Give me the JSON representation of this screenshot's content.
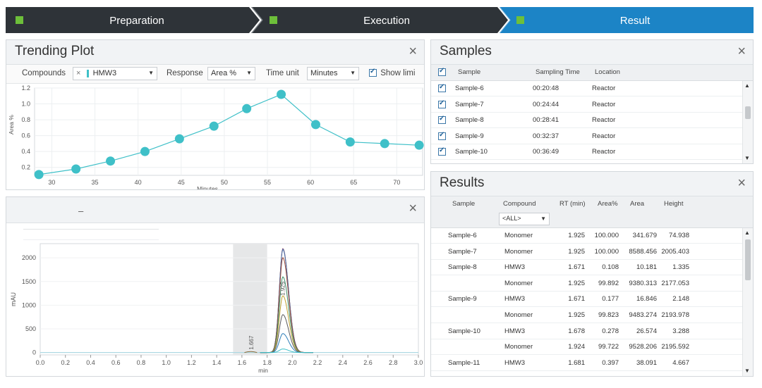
{
  "steps": [
    {
      "label": "Preparation",
      "active": false
    },
    {
      "label": "Execution",
      "active": false
    },
    {
      "label": "Result",
      "active": true
    }
  ],
  "colors": {
    "step_dark": "#2e3338",
    "step_active": "#1c84c6",
    "step_square": "#6dbf3a",
    "trend": "#3fc0c8"
  },
  "trending": {
    "title": "Trending Plot",
    "close": "×",
    "compounds_label": "Compounds",
    "compound_clear": "×",
    "compound_value": "HMW3",
    "response_label": "Response",
    "response_value": "Area %",
    "timeunit_label": "Time unit",
    "timeunit_value": "Minutes",
    "showlimits_label": "Show limi",
    "showlimits_checked": true
  },
  "chromatogram": {
    "close": "×",
    "tab_mark": "–",
    "peak_label": "1.667",
    "peak_label2": "1.925"
  },
  "samples": {
    "title": "Samples",
    "close": "×",
    "columns": [
      "Sample",
      "Sampling Time",
      "Location"
    ],
    "rows": [
      {
        "sample": "Sample-6",
        "time": "00:20:48",
        "location": "Reactor"
      },
      {
        "sample": "Sample-7",
        "time": "00:24:44",
        "location": "Reactor"
      },
      {
        "sample": "Sample-8",
        "time": "00:28:41",
        "location": "Reactor"
      },
      {
        "sample": "Sample-9",
        "time": "00:32:37",
        "location": "Reactor"
      },
      {
        "sample": "Sample-10",
        "time": "00:36:49",
        "location": "Reactor"
      }
    ]
  },
  "results": {
    "title": "Results",
    "close": "×",
    "columns": [
      "Sample",
      "Compound",
      "RT (min)",
      "Area%",
      "Area",
      "Height"
    ],
    "compound_filter": "<ALL>",
    "rows": [
      {
        "sample": "Sample-6",
        "compound": "Monomer",
        "rt": "1.925",
        "areapct": "100.000",
        "area": "341.679",
        "height": "74.938"
      },
      {
        "sample": "Sample-7",
        "compound": "Monomer",
        "rt": "1.925",
        "areapct": "100.000",
        "area": "8588.456",
        "height": "2005.403"
      },
      {
        "sample": "Sample-8",
        "compound": "HMW3",
        "rt": "1.671",
        "areapct": "0.108",
        "area": "10.181",
        "height": "1.335"
      },
      {
        "sample": "",
        "compound": "Monomer",
        "rt": "1.925",
        "areapct": "99.892",
        "area": "9380.313",
        "height": "2177.053"
      },
      {
        "sample": "Sample-9",
        "compound": "HMW3",
        "rt": "1.671",
        "areapct": "0.177",
        "area": "16.846",
        "height": "2.148"
      },
      {
        "sample": "",
        "compound": "Monomer",
        "rt": "1.925",
        "areapct": "99.823",
        "area": "9483.274",
        "height": "2193.978"
      },
      {
        "sample": "Sample-10",
        "compound": "HMW3",
        "rt": "1.678",
        "areapct": "0.278",
        "area": "26.574",
        "height": "3.288"
      },
      {
        "sample": "",
        "compound": "Monomer",
        "rt": "1.924",
        "areapct": "99.722",
        "area": "9528.206",
        "height": "2195.592"
      },
      {
        "sample": "Sample-11",
        "compound": "HMW3",
        "rt": "1.681",
        "areapct": "0.397",
        "area": "38.091",
        "height": "4.667"
      }
    ]
  },
  "chart_data": [
    {
      "type": "line",
      "title": "",
      "xlabel": "Minutes",
      "ylabel": "Area %",
      "xlim": [
        28,
        73
      ],
      "ylim": [
        0.1,
        1.2
      ],
      "xticks": [
        30,
        35,
        40,
        45,
        50,
        55,
        60,
        65,
        70
      ],
      "yticks": [
        0.2,
        0.4,
        0.6,
        0.8,
        1.0,
        1.2
      ],
      "ytick_labels": [
        "0.2",
        "0.4",
        "0.6",
        "0.8",
        "1.0",
        "1.2"
      ],
      "grid": true,
      "series": [
        {
          "x": [
            28.5,
            32.8,
            36.8,
            40.8,
            44.8,
            48.8,
            52.6,
            56.6,
            60.6,
            64.6,
            68.6,
            72.6
          ],
          "y": [
            0.11,
            0.18,
            0.28,
            0.4,
            0.56,
            0.72,
            0.94,
            1.12,
            0.74,
            0.52,
            0.5,
            0.48
          ]
        }
      ]
    },
    {
      "type": "line",
      "title": "",
      "xlabel": "min",
      "ylabel": "mAU",
      "xlim": [
        0.0,
        3.0
      ],
      "ylim": [
        -50,
        2300
      ],
      "xticks": [
        0.0,
        0.2,
        0.4,
        0.6,
        0.8,
        1.0,
        1.2,
        1.4,
        1.6,
        1.8,
        2.0,
        2.2,
        2.4,
        2.6,
        2.8,
        3.0
      ],
      "xtick_labels": [
        "0.0",
        "0.2",
        "0.4",
        "0.6",
        "0.8",
        "1.0",
        "1.2",
        "1.4",
        "1.6",
        "1.8",
        "2.0",
        "2.2",
        "2.4",
        "2.6",
        "2.8",
        "3.0"
      ],
      "yticks": [
        0,
        500,
        1000,
        1500,
        2000
      ],
      "highlight_range": [
        1.53,
        1.8
      ],
      "peaks": [
        {
          "rt": 1.925,
          "height": 2195.592,
          "color": "#d07a2a"
        },
        {
          "rt": 1.925,
          "height": 2193.978,
          "color": "#7a5a9c"
        },
        {
          "rt": 1.925,
          "height": 2177.053,
          "color": "#4a6fa5"
        },
        {
          "rt": 1.925,
          "height": 2005.403,
          "color": "#9c4a3a"
        },
        {
          "rt": 1.925,
          "height": 1600,
          "color": "#3c8f6a"
        },
        {
          "rt": 1.925,
          "height": 1200,
          "color": "#c0a030"
        },
        {
          "rt": 1.925,
          "height": 800,
          "color": "#5a5a5a"
        },
        {
          "rt": 1.925,
          "height": 400,
          "color": "#2f7fb8"
        },
        {
          "rt": 1.925,
          "height": 74.938,
          "color": "#3fc0c8"
        }
      ]
    }
  ]
}
